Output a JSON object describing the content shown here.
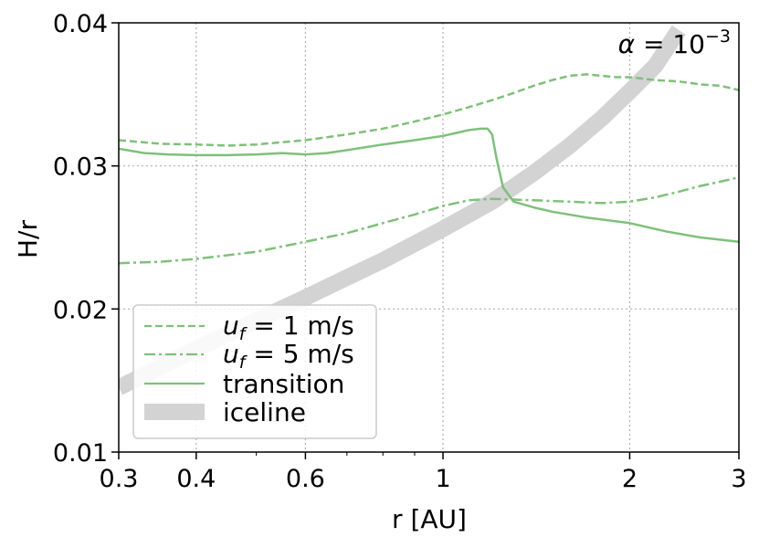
{
  "chart_data": {
    "type": "line",
    "xlabel": "r [AU]",
    "ylabel": "H/r",
    "xscale": "log",
    "xlim": [
      0.3,
      3
    ],
    "ylim": [
      0.01,
      0.04
    ],
    "x_ticks": [
      0.3,
      0.4,
      0.6,
      1,
      2,
      3
    ],
    "x_tick_labels": [
      "0.3",
      "0.4",
      "0.6",
      "1",
      "2",
      "3"
    ],
    "y_ticks": [
      0.01,
      0.02,
      0.03,
      0.04
    ],
    "y_tick_labels": [
      "0.01",
      "0.02",
      "0.03",
      "0.04"
    ],
    "grid": true,
    "legend_position": "bottom-left",
    "annotation": {
      "symbol": "α",
      "text": " = 10",
      "exponent": "−3"
    },
    "series": [
      {
        "name_prefix": "u",
        "name_sub": "f",
        "name_suffix": " = 1 m/s",
        "style": "dashed",
        "color": "#7fc07a",
        "x": [
          0.3,
          0.35,
          0.4,
          0.45,
          0.5,
          0.6,
          0.7,
          0.8,
          0.9,
          1.0,
          1.1,
          1.2,
          1.3,
          1.4,
          1.5,
          1.6,
          1.7,
          1.8,
          1.9,
          2.0,
          2.2,
          2.4,
          2.6,
          2.8,
          3.0
        ],
        "y": [
          0.0318,
          0.03155,
          0.0315,
          0.03142,
          0.0315,
          0.0318,
          0.0322,
          0.0326,
          0.0331,
          0.0336,
          0.0341,
          0.0346,
          0.0351,
          0.0356,
          0.036,
          0.0363,
          0.0364,
          0.0363,
          0.0362,
          0.0362,
          0.036,
          0.0359,
          0.0357,
          0.0356,
          0.0353
        ]
      },
      {
        "name_prefix": "u",
        "name_sub": "f",
        "name_suffix": " = 5 m/s",
        "style": "dashdot",
        "color": "#7fc07a",
        "x": [
          0.3,
          0.35,
          0.4,
          0.5,
          0.6,
          0.7,
          0.8,
          0.9,
          1.0,
          1.1,
          1.2,
          1.4,
          1.6,
          1.8,
          2.0,
          2.2,
          2.4,
          2.6,
          2.8,
          3.0
        ],
        "y": [
          0.0232,
          0.0233,
          0.0235,
          0.024,
          0.0247,
          0.0253,
          0.026,
          0.0266,
          0.0272,
          0.0276,
          0.0277,
          0.0276,
          0.0275,
          0.0274,
          0.0275,
          0.0278,
          0.0282,
          0.0286,
          0.0289,
          0.0292
        ]
      },
      {
        "name": "transition",
        "style": "solid",
        "color": "#7fc07a",
        "x": [
          0.3,
          0.33,
          0.36,
          0.4,
          0.45,
          0.5,
          0.55,
          0.6,
          0.65,
          0.7,
          0.8,
          0.9,
          1.0,
          1.05,
          1.1,
          1.15,
          1.18,
          1.2,
          1.22,
          1.25,
          1.3,
          1.4,
          1.5,
          1.7,
          2.0,
          2.3,
          2.6,
          3.0
        ],
        "y": [
          0.0312,
          0.0309,
          0.0308,
          0.03075,
          0.03075,
          0.0308,
          0.0309,
          0.0308,
          0.0309,
          0.0311,
          0.0315,
          0.0318,
          0.0321,
          0.0323,
          0.0325,
          0.0326,
          0.0326,
          0.0322,
          0.0305,
          0.0285,
          0.0275,
          0.0271,
          0.0268,
          0.0264,
          0.026,
          0.0254,
          0.025,
          0.0247
        ]
      },
      {
        "name": "iceline",
        "style": "band",
        "color": "#d3d3d3",
        "x": [
          0.3,
          0.4,
          0.5,
          0.6,
          0.7,
          0.8,
          1.0,
          1.2,
          1.4,
          1.6,
          1.8,
          2.0,
          2.2,
          2.4
        ],
        "y": [
          0.0145,
          0.0172,
          0.0192,
          0.0208,
          0.0222,
          0.0234,
          0.0256,
          0.0275,
          0.0295,
          0.0314,
          0.0333,
          0.0352,
          0.037,
          0.0395
        ]
      }
    ]
  }
}
